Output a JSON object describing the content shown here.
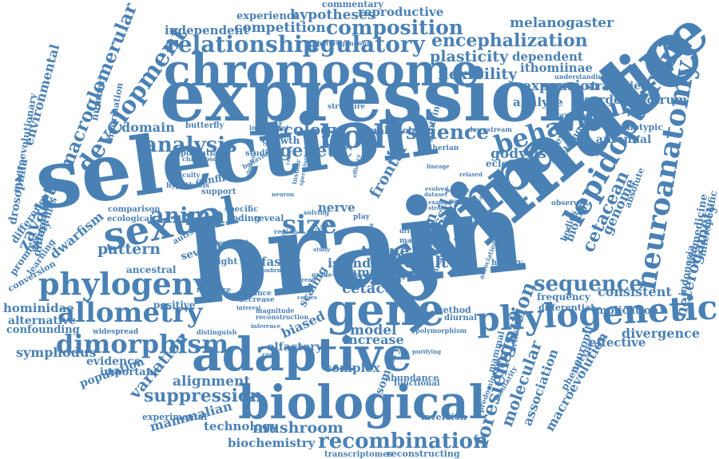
{
  "color": "#4a81b5",
  "words": [
    "brain",
    "primate",
    "selection",
    "expression",
    "comparative",
    "chromosome",
    "biological",
    "adaptive",
    "gene",
    "sexual",
    "phylogeny",
    "phylogenetic",
    "allometry",
    "body",
    "behavioural",
    "lepidopteron",
    "neuroanatomy",
    "dimorphism",
    "relationship",
    "regulatory",
    "composition",
    "encephalization",
    "science",
    "size",
    "animal",
    "development",
    "macroglomerular",
    "analysis",
    "ecology",
    "genetic",
    "sequence",
    "cognition",
    "recombination",
    "mushroom",
    "suppression",
    "alignment",
    "variation",
    "flexibility",
    "plasticity",
    "dependent",
    "ithomiinae",
    "expansion",
    "analyse",
    "strategies",
    "disorder",
    "spectrum",
    "melanogaster",
    "reproductive",
    "hypotheses",
    "experience",
    "competition",
    "independent",
    "commentary",
    "domain",
    "pattern",
    "tissue",
    "cetacea",
    "mas",
    "result",
    "fossil",
    "human",
    "frontal",
    "lobe",
    "nerve",
    "zavaleta",
    "dwarfism",
    "hominidae",
    "alternative",
    "confounding",
    "symphodus",
    "evidence",
    "important",
    "population",
    "experimental",
    "mammalian",
    "technology",
    "biochemistry",
    "transcriptomes",
    "reconstructing",
    "inversion",
    "isometry",
    "complex",
    "abundance",
    "functional",
    "increase",
    "biased",
    "model",
    "olfactory",
    "scaling",
    "foresiensis",
    "molecular",
    "association",
    "macroevolution",
    "neuropil",
    "phenotype",
    "effective",
    "divergence",
    "implication",
    "differential",
    "frequency",
    "consistent",
    "cetacean",
    "genome",
    "biology",
    "indonesia",
    "biomedicine",
    "heterogamety",
    "interspecific",
    "antennal",
    "phenotypic",
    "godyris",
    "eclosion",
    "previous",
    "change",
    "environmental",
    "macroevolutionary",
    "drosophila",
    "difference",
    "promiscuity",
    "butterflies",
    "conversion",
    "learning",
    "different",
    "number",
    "information",
    "butterfly",
    "potential",
    "studies",
    "growth",
    "protein",
    "female",
    "dolphin",
    "eutherian",
    "downstream",
    "investment",
    "structure",
    "formation",
    "understanding",
    "heterogeneous",
    "conflict",
    "support",
    "hypothesis",
    "comparison",
    "ecological",
    "specific",
    "coding",
    "reveal",
    "region",
    "avian",
    "several",
    "autistic",
    "faster",
    "island",
    "swamp",
    "weight",
    "ancestral",
    "measure",
    "positive",
    "reliance",
    "decrease",
    "window",
    "method",
    "diurnal",
    "turnover",
    "drive",
    "male",
    "clade",
    "history",
    "observed",
    "bodies",
    "absolute",
    "mammal",
    "artificial",
    "insularity",
    "predominance",
    "polymorphism",
    "solving",
    "crest",
    "distinguish",
    "widespread",
    "reconstruction",
    "magnitude",
    "difficulty",
    "chromosomal",
    "purifying",
    "masker",
    "grade",
    "play",
    "data",
    "drift"
  ],
  "words_small": [
    "hypotheses",
    "behavioural",
    "temporal",
    "association",
    "subgenus",
    "cortex",
    "neuron",
    "lineage",
    "parallel",
    "evolved",
    "dataset",
    "example",
    "strong",
    "present",
    "trend",
    "study",
    "interest",
    "inference",
    "shaping",
    "copies",
    "insular",
    "spermiogenesis",
    "confirm",
    "efficacy",
    "relaxed",
    "contrast"
  ]
}
